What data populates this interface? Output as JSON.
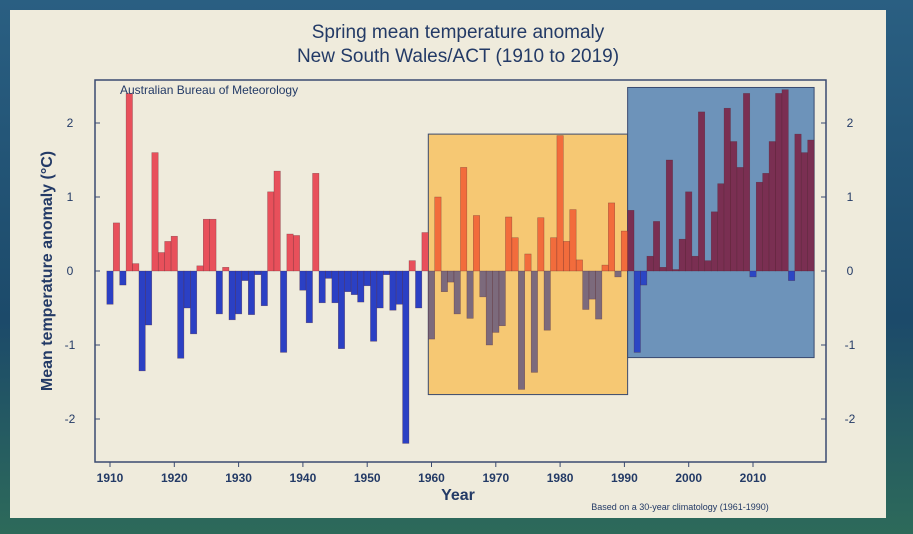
{
  "chart_data": {
    "type": "bar",
    "title": "Spring mean temperature anomaly",
    "subtitle": "New South Wales/ACT (1910 to 2019)",
    "annotation": "Australian Bureau of Meteorology",
    "footnote": "Based on a 30-year climatology (1961-1990)",
    "xlabel": "Year",
    "ylabel": "Mean temperature anomaly (°C)",
    "xlim": [
      1908,
      2021
    ],
    "ylim": [
      -2.6,
      2.6
    ],
    "x_ticks": [
      "1910",
      "1920",
      "1930",
      "1940",
      "1950",
      "1960",
      "1970",
      "1980",
      "1990",
      "2000",
      "2010"
    ],
    "y_ticks": [
      "2",
      "1",
      "0",
      "-1",
      "-2"
    ],
    "grid": false,
    "colors": {
      "positive": "#e8505b",
      "negative": "#2b40c4",
      "highlight_1960_1990": "#f6c873",
      "highlight_1991_2019": "#6d93ba"
    },
    "highlights": [
      {
        "from": 1960,
        "to": 1991,
        "ymin": -1.67,
        "ymax": 1.85
      },
      {
        "from": 1991,
        "to": 2020,
        "ymin": -1.17,
        "ymax": 2.48
      }
    ],
    "x": [
      1910,
      1911,
      1912,
      1913,
      1914,
      1915,
      1916,
      1917,
      1918,
      1919,
      1920,
      1921,
      1922,
      1923,
      1924,
      1925,
      1926,
      1927,
      1928,
      1929,
      1930,
      1931,
      1932,
      1933,
      1934,
      1935,
      1936,
      1937,
      1938,
      1939,
      1940,
      1941,
      1942,
      1943,
      1944,
      1945,
      1946,
      1947,
      1948,
      1949,
      1950,
      1951,
      1952,
      1953,
      1954,
      1955,
      1956,
      1957,
      1958,
      1959,
      1960,
      1961,
      1962,
      1963,
      1964,
      1965,
      1966,
      1967,
      1968,
      1969,
      1970,
      1971,
      1972,
      1973,
      1974,
      1975,
      1976,
      1977,
      1978,
      1979,
      1980,
      1981,
      1982,
      1983,
      1984,
      1985,
      1986,
      1987,
      1988,
      1989,
      1990,
      1991,
      1992,
      1993,
      1994,
      1995,
      1996,
      1997,
      1998,
      1999,
      2000,
      2001,
      2002,
      2003,
      2004,
      2005,
      2006,
      2007,
      2008,
      2009,
      2010,
      2011,
      2012,
      2013,
      2014,
      2015,
      2016,
      2017,
      2018,
      2019
    ],
    "values": [
      -0.45,
      0.65,
      -0.19,
      2.4,
      0.1,
      -1.35,
      -0.73,
      1.6,
      0.25,
      0.4,
      0.47,
      -1.18,
      -0.5,
      -0.85,
      0.07,
      0.7,
      0.7,
      -0.58,
      0.05,
      -0.66,
      -0.58,
      -0.13,
      -0.59,
      -0.05,
      -0.47,
      1.07,
      1.35,
      -1.1,
      0.5,
      0.48,
      -0.26,
      -0.7,
      1.32,
      -0.43,
      -0.1,
      -0.43,
      -1.05,
      -0.28,
      -0.32,
      -0.42,
      -0.2,
      -0.95,
      -0.5,
      -0.05,
      -0.53,
      -0.45,
      -2.33,
      0.14,
      -0.5,
      0.52,
      -0.92,
      1.0,
      -0.28,
      -0.15,
      -0.58,
      1.4,
      -0.64,
      0.75,
      -0.35,
      -1.0,
      -0.83,
      -0.74,
      0.73,
      0.45,
      -1.6,
      0.23,
      -1.37,
      0.72,
      -0.8,
      0.45,
      1.83,
      0.4,
      0.83,
      0.15,
      -0.52,
      -0.38,
      -0.65,
      0.08,
      0.92,
      -0.08,
      0.54,
      0.82,
      -1.1,
      -0.19,
      0.2,
      0.67,
      0.05,
      1.5,
      0.02,
      0.43,
      1.07,
      0.2,
      2.15,
      0.14,
      0.8,
      1.18,
      2.2,
      1.75,
      1.4,
      2.4,
      -0.08,
      1.2,
      1.32,
      1.75,
      2.4,
      2.45,
      -0.13,
      1.85,
      1.6,
      1.77
    ]
  }
}
